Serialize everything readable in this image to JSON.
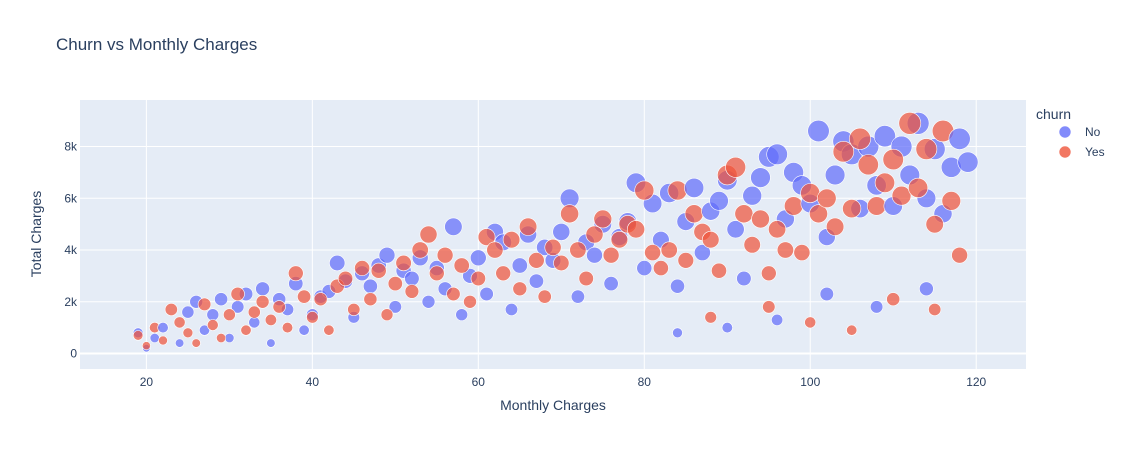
{
  "chart_data": {
    "type": "scatter",
    "title": "Churn vs Monthly Charges",
    "xlabel": "Monthly Charges",
    "ylabel": "Total Charges",
    "xlim": [
      12,
      126
    ],
    "ylim": [
      -600,
      9800
    ],
    "x_ticks": [
      {
        "value": 20,
        "label": "20"
      },
      {
        "value": 40,
        "label": "40"
      },
      {
        "value": 60,
        "label": "60"
      },
      {
        "value": 80,
        "label": "80"
      },
      {
        "value": 100,
        "label": "100"
      },
      {
        "value": 120,
        "label": "120"
      }
    ],
    "y_ticks": [
      {
        "value": 0,
        "label": "0"
      },
      {
        "value": 2000,
        "label": "2k"
      },
      {
        "value": 4000,
        "label": "4k"
      },
      {
        "value": 6000,
        "label": "6k"
      },
      {
        "value": 8000,
        "label": "8k"
      }
    ],
    "grid": true,
    "legend": {
      "title": "churn",
      "placement": "right"
    },
    "series": [
      {
        "name": "No",
        "color": "#636efa",
        "points": [
          [
            19,
            800
          ],
          [
            20,
            200
          ],
          [
            21,
            600
          ],
          [
            22,
            1000
          ],
          [
            24,
            400
          ],
          [
            25,
            1600
          ],
          [
            26,
            2000
          ],
          [
            27,
            900
          ],
          [
            28,
            1500
          ],
          [
            29,
            2100
          ],
          [
            30,
            600
          ],
          [
            31,
            1800
          ],
          [
            32,
            2300
          ],
          [
            33,
            1200
          ],
          [
            34,
            2500
          ],
          [
            35,
            400
          ],
          [
            36,
            2100
          ],
          [
            37,
            1700
          ],
          [
            38,
            2700
          ],
          [
            39,
            900
          ],
          [
            40,
            1500
          ],
          [
            41,
            2200
          ],
          [
            42,
            2400
          ],
          [
            43,
            3500
          ],
          [
            44,
            2800
          ],
          [
            45,
            1400
          ],
          [
            46,
            3100
          ],
          [
            47,
            2600
          ],
          [
            48,
            3400
          ],
          [
            49,
            3800
          ],
          [
            50,
            1800
          ],
          [
            51,
            3200
          ],
          [
            52,
            2900
          ],
          [
            53,
            3700
          ],
          [
            54,
            2000
          ],
          [
            55,
            3300
          ],
          [
            56,
            2500
          ],
          [
            57,
            4900
          ],
          [
            58,
            1500
          ],
          [
            59,
            3000
          ],
          [
            60,
            3700
          ],
          [
            61,
            2300
          ],
          [
            62,
            4700
          ],
          [
            63,
            4300
          ],
          [
            64,
            1700
          ],
          [
            65,
            3400
          ],
          [
            66,
            4600
          ],
          [
            67,
            2800
          ],
          [
            68,
            4100
          ],
          [
            69,
            3600
          ],
          [
            70,
            4700
          ],
          [
            71,
            6000
          ],
          [
            72,
            2200
          ],
          [
            73,
            4300
          ],
          [
            74,
            3800
          ],
          [
            75,
            5000
          ],
          [
            76,
            2700
          ],
          [
            77,
            4500
          ],
          [
            78,
            5100
          ],
          [
            79,
            6600
          ],
          [
            80,
            3300
          ],
          [
            81,
            5800
          ],
          [
            82,
            4400
          ],
          [
            83,
            6200
          ],
          [
            84,
            2600
          ],
          [
            85,
            5100
          ],
          [
            86,
            6400
          ],
          [
            87,
            3900
          ],
          [
            88,
            5500
          ],
          [
            89,
            5900
          ],
          [
            90,
            6700
          ],
          [
            91,
            4800
          ],
          [
            92,
            2900
          ],
          [
            93,
            6100
          ],
          [
            94,
            6800
          ],
          [
            95,
            7600
          ],
          [
            96,
            7700
          ],
          [
            97,
            5200
          ],
          [
            98,
            7000
          ],
          [
            99,
            6500
          ],
          [
            100,
            5800
          ],
          [
            101,
            8600
          ],
          [
            102,
            4500
          ],
          [
            103,
            6900
          ],
          [
            104,
            8200
          ],
          [
            105,
            7700
          ],
          [
            106,
            5600
          ],
          [
            107,
            8000
          ],
          [
            108,
            6500
          ],
          [
            109,
            8400
          ],
          [
            110,
            5700
          ],
          [
            111,
            8000
          ],
          [
            112,
            6900
          ],
          [
            113,
            8900
          ],
          [
            114,
            6000
          ],
          [
            115,
            7900
          ],
          [
            116,
            5400
          ],
          [
            117,
            7200
          ],
          [
            118,
            8300
          ],
          [
            119,
            7400
          ],
          [
            102,
            2300
          ],
          [
            108,
            1800
          ],
          [
            114,
            2500
          ],
          [
            96,
            1300
          ],
          [
            90,
            1000
          ],
          [
            84,
            800
          ]
        ]
      },
      {
        "name": "Yes",
        "color": "#ef553b",
        "points": [
          [
            19,
            700
          ],
          [
            20,
            300
          ],
          [
            21,
            1000
          ],
          [
            22,
            500
          ],
          [
            23,
            1700
          ],
          [
            24,
            1200
          ],
          [
            25,
            800
          ],
          [
            26,
            400
          ],
          [
            27,
            1900
          ],
          [
            28,
            1100
          ],
          [
            29,
            600
          ],
          [
            30,
            1500
          ],
          [
            31,
            2300
          ],
          [
            32,
            900
          ],
          [
            33,
            1600
          ],
          [
            34,
            2000
          ],
          [
            35,
            1300
          ],
          [
            36,
            1800
          ],
          [
            37,
            1000
          ],
          [
            38,
            3100
          ],
          [
            39,
            2200
          ],
          [
            40,
            1400
          ],
          [
            41,
            2100
          ],
          [
            42,
            900
          ],
          [
            43,
            2600
          ],
          [
            44,
            2900
          ],
          [
            45,
            1700
          ],
          [
            46,
            3300
          ],
          [
            47,
            2100
          ],
          [
            48,
            3200
          ],
          [
            49,
            1500
          ],
          [
            50,
            2700
          ],
          [
            51,
            3500
          ],
          [
            52,
            2400
          ],
          [
            53,
            4000
          ],
          [
            54,
            4600
          ],
          [
            55,
            3100
          ],
          [
            56,
            3800
          ],
          [
            57,
            2300
          ],
          [
            58,
            3400
          ],
          [
            59,
            2000
          ],
          [
            60,
            2900
          ],
          [
            61,
            4500
          ],
          [
            62,
            4000
          ],
          [
            63,
            3100
          ],
          [
            64,
            4400
          ],
          [
            65,
            2500
          ],
          [
            66,
            4900
          ],
          [
            67,
            3600
          ],
          [
            68,
            2200
          ],
          [
            69,
            4100
          ],
          [
            70,
            3500
          ],
          [
            71,
            5400
          ],
          [
            72,
            4000
          ],
          [
            73,
            2900
          ],
          [
            74,
            4600
          ],
          [
            75,
            5200
          ],
          [
            76,
            3800
          ],
          [
            77,
            4400
          ],
          [
            78,
            5000
          ],
          [
            79,
            4800
          ],
          [
            80,
            6300
          ],
          [
            81,
            3900
          ],
          [
            82,
            3300
          ],
          [
            83,
            4000
          ],
          [
            84,
            6300
          ],
          [
            85,
            3600
          ],
          [
            86,
            5400
          ],
          [
            87,
            4700
          ],
          [
            88,
            4400
          ],
          [
            89,
            3200
          ],
          [
            90,
            6900
          ],
          [
            91,
            7200
          ],
          [
            92,
            5400
          ],
          [
            93,
            4200
          ],
          [
            94,
            5200
          ],
          [
            95,
            3100
          ],
          [
            96,
            4800
          ],
          [
            97,
            4000
          ],
          [
            98,
            5700
          ],
          [
            99,
            3900
          ],
          [
            100,
            6200
          ],
          [
            101,
            5400
          ],
          [
            102,
            6000
          ],
          [
            103,
            4900
          ],
          [
            104,
            7800
          ],
          [
            105,
            5600
          ],
          [
            106,
            8300
          ],
          [
            107,
            7300
          ],
          [
            108,
            5700
          ],
          [
            109,
            6600
          ],
          [
            110,
            7500
          ],
          [
            111,
            6100
          ],
          [
            112,
            8900
          ],
          [
            113,
            6400
          ],
          [
            114,
            7900
          ],
          [
            115,
            5000
          ],
          [
            116,
            8600
          ],
          [
            117,
            5900
          ],
          [
            118,
            3800
          ],
          [
            95,
            1800
          ],
          [
            100,
            1200
          ],
          [
            105,
            900
          ],
          [
            110,
            2100
          ],
          [
            115,
            1700
          ],
          [
            88,
            1400
          ]
        ]
      }
    ]
  }
}
